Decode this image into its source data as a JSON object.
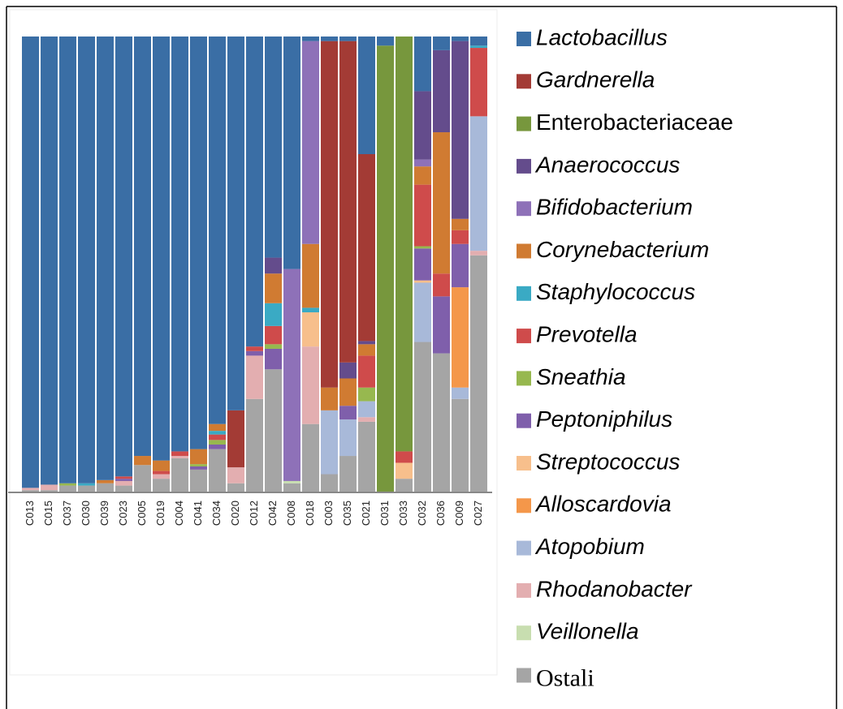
{
  "chart_data": {
    "type": "stacked_bar",
    "categories": [
      "C013",
      "C015",
      "C037",
      "C030",
      "C039",
      "C023",
      "C005",
      "C019",
      "C004",
      "C041",
      "C034",
      "C020",
      "C012",
      "C042",
      "C008",
      "C018",
      "C003",
      "C035",
      "C021",
      "C031",
      "C033",
      "C032",
      "C036",
      "C009",
      "C027"
    ],
    "ylim": [
      0,
      100
    ],
    "series": [
      {
        "name": "Lactobacillus",
        "color": "#3a6ea5",
        "values": [
          99,
          98.3,
          98,
          98,
          97.3,
          96.5,
          92,
          93,
          91,
          90.5,
          85,
          82,
          68,
          48.5,
          51,
          1,
          1,
          1,
          25.8,
          2,
          0,
          12,
          3,
          1,
          2
        ]
      },
      {
        "name": "Gardnerella",
        "color": "#a33b35",
        "values": [
          0,
          0,
          0,
          0,
          0,
          0,
          0,
          0,
          0,
          0,
          0,
          12.5,
          0,
          0,
          0,
          0,
          76,
          70.5,
          41,
          0,
          0,
          0,
          0,
          0,
          0
        ]
      },
      {
        "name": "Enterobacteriaceae",
        "color": "#77973d",
        "values": [
          0,
          0,
          0,
          0,
          0,
          0,
          0,
          0,
          0,
          0,
          0,
          0,
          0,
          0,
          0,
          0,
          0,
          0,
          0,
          98,
          91,
          0,
          0,
          0,
          0
        ]
      },
      {
        "name": "Anaerococcus",
        "color": "#644c8c",
        "values": [
          0,
          0,
          0,
          0,
          0,
          0,
          0,
          0,
          0,
          0,
          0,
          0,
          0,
          3.5,
          0,
          0,
          0,
          3.5,
          0.7,
          0,
          0,
          15,
          18,
          39,
          0
        ]
      },
      {
        "name": "Bifidobacterium",
        "color": "#8e71b8",
        "values": [
          0,
          0,
          0,
          0,
          0,
          0,
          0,
          0,
          0,
          0,
          0,
          0,
          0,
          0,
          46.5,
          44.5,
          0,
          0,
          0,
          0,
          0,
          1.5,
          0,
          0,
          0
        ]
      },
      {
        "name": "Corynebacterium",
        "color": "#d07b32",
        "values": [
          0,
          0,
          0,
          0,
          0.7,
          0,
          2,
          2.3,
          0,
          3.3,
          1.5,
          0,
          0,
          6.5,
          0,
          14,
          5,
          6,
          2.5,
          0,
          0,
          4,
          31,
          2.5,
          0
        ]
      },
      {
        "name": "Staphylococcus",
        "color": "#3aaac4",
        "values": [
          0,
          0,
          0,
          0.5,
          0,
          0,
          0,
          0,
          0,
          0,
          0.8,
          0,
          0,
          5,
          0,
          1,
          0,
          0,
          0,
          0,
          0,
          0,
          0,
          0,
          0.5
        ]
      },
      {
        "name": "Prevotella",
        "color": "#cf4b4b",
        "values": [
          0,
          0,
          0,
          0,
          0,
          0.5,
          0,
          0.7,
          1,
          0,
          1.2,
          0,
          1,
          4,
          0,
          0,
          0,
          0,
          7,
          0,
          2.5,
          13.5,
          5,
          3,
          15
        ]
      },
      {
        "name": "Sneathia",
        "color": "#97b84f",
        "values": [
          0,
          0,
          0.5,
          0,
          0,
          0,
          0,
          0,
          0,
          0.5,
          1,
          0,
          0,
          1,
          0,
          0,
          0,
          0,
          3,
          0,
          0,
          0.5,
          0,
          0,
          0
        ]
      },
      {
        "name": "Peptoniphilus",
        "color": "#7f5fab",
        "values": [
          0,
          0,
          0,
          0,
          0,
          0.5,
          0,
          0,
          0,
          0.7,
          1,
          0,
          1,
          4.5,
          0,
          0,
          0,
          3,
          0,
          0,
          0,
          7,
          12.5,
          9.5,
          0
        ]
      },
      {
        "name": "Streptococcus",
        "color": "#f7bf8c",
        "values": [
          0,
          0,
          0,
          0,
          0,
          0,
          0,
          0,
          0,
          0,
          0,
          0,
          0,
          0,
          0,
          7.5,
          0,
          0,
          0,
          0,
          3.5,
          0.5,
          0,
          0,
          0
        ]
      },
      {
        "name": "Alloscardovia",
        "color": "#f4974a",
        "values": [
          0,
          0,
          0,
          0,
          0,
          0,
          0,
          0,
          0,
          0,
          0,
          0,
          0,
          0,
          0,
          0,
          0,
          0,
          0,
          0,
          0,
          0,
          0,
          22,
          0
        ]
      },
      {
        "name": "Atopobium",
        "color": "#a8b9d9",
        "values": [
          0,
          0,
          0,
          0,
          0,
          0,
          0,
          0,
          0,
          0,
          0,
          0,
          0,
          0,
          0,
          0,
          14,
          8,
          3.5,
          0,
          0,
          13,
          0,
          2.5,
          29.5
        ]
      },
      {
        "name": "Rhodanobacter",
        "color": "#e3aeb0",
        "values": [
          0.5,
          1.2,
          0,
          0,
          0,
          1,
          0,
          1,
          0.5,
          0,
          0,
          3.5,
          9.5,
          0,
          0,
          17,
          0,
          0,
          1,
          0,
          0,
          0,
          0,
          0,
          1
        ]
      },
      {
        "name": "Veillonella",
        "color": "#c8deb0",
        "values": [
          0,
          0,
          0,
          0,
          0,
          0,
          0,
          0,
          0,
          0,
          0,
          0,
          0,
          0,
          0.5,
          0,
          0,
          0,
          0,
          0,
          0,
          0,
          0,
          0,
          0
        ]
      },
      {
        "name": "Ostali",
        "color": "#a5a5a5",
        "values": [
          0.5,
          0.5,
          1.5,
          1.5,
          2,
          1.5,
          6,
          3,
          7.5,
          5,
          9.5,
          2,
          20.5,
          27,
          2,
          15,
          4,
          8,
          15.5,
          0,
          3,
          33,
          30.5,
          20.5,
          52
        ]
      }
    ]
  }
}
